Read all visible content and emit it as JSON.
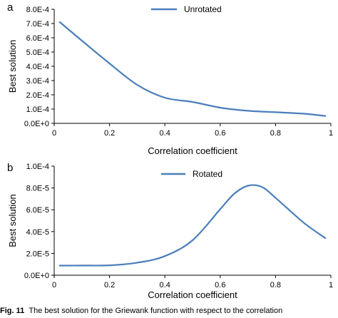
{
  "chart_data": [
    {
      "type": "line",
      "panel": "a",
      "xlabel": "Correlation coefficient",
      "ylabel": "Best solution",
      "xlim": [
        0,
        1
      ],
      "ylim": [
        0,
        0.0008
      ],
      "x_ticks": [
        0,
        0.2,
        0.4,
        0.6,
        0.8,
        1
      ],
      "x_tick_labels": [
        "0",
        "0.2",
        "0.4",
        "0.6",
        "0.8",
        "1"
      ],
      "y_ticks": [
        0,
        0.0001,
        0.0002,
        0.0003,
        0.0004,
        0.0005,
        0.0006,
        0.0007,
        0.0008
      ],
      "y_tick_labels": [
        "0.0E+0",
        "1.0E-4",
        "2.0E-4",
        "3.0E-4",
        "4.0E-4",
        "5.0E-4",
        "6.0E-4",
        "7.0E-4",
        "8.0E-4"
      ],
      "grid": false,
      "legend_position": "top-center",
      "series": [
        {
          "name": "Unrotated",
          "color": "#4a7ebb",
          "x": [
            0.02,
            0.1,
            0.2,
            0.3,
            0.4,
            0.5,
            0.6,
            0.7,
            0.8,
            0.9,
            0.98
          ],
          "y": [
            0.00071,
            0.00058,
            0.00042,
            0.00027,
            0.00018,
            0.00015,
            0.00011,
            8.8e-05,
            7.8e-05,
            6.8e-05,
            5.2e-05
          ]
        }
      ]
    },
    {
      "type": "line",
      "panel": "b",
      "xlabel": "Correlation coefficient",
      "ylabel": "Best solution",
      "xlim": [
        0,
        1
      ],
      "ylim": [
        0,
        0.0001
      ],
      "x_ticks": [
        0,
        0.2,
        0.4,
        0.6,
        0.8,
        1
      ],
      "x_tick_labels": [
        "0",
        "0.2",
        "0.4",
        "0.6",
        "0.8",
        "1"
      ],
      "y_ticks": [
        0,
        2e-05,
        4e-05,
        6e-05,
        8e-05,
        0.0001
      ],
      "y_tick_labels": [
        "0.0E+0",
        "2.0E-5",
        "4.0E-5",
        "6.0E-5",
        "8.0E-5",
        "1.0E-4"
      ],
      "grid": false,
      "legend_position": "top-left",
      "series": [
        {
          "name": "Rotated",
          "color": "#4a7ebb",
          "x": [
            0.02,
            0.1,
            0.2,
            0.3,
            0.4,
            0.5,
            0.6,
            0.65,
            0.7,
            0.75,
            0.8,
            0.9,
            0.98
          ],
          "y": [
            8.8e-06,
            8.9e-06,
            9.1e-06,
            1.15e-05,
            1.75e-05,
            3.2e-05,
            6.05e-05,
            7.45e-05,
            8.2e-05,
            8.1e-05,
            7.1e-05,
            4.85e-05,
            3.4e-05
          ]
        }
      ]
    }
  ],
  "caption": {
    "label": "Fig. 11",
    "text": "The best solution for the Griewank function with respect to the correlation"
  }
}
